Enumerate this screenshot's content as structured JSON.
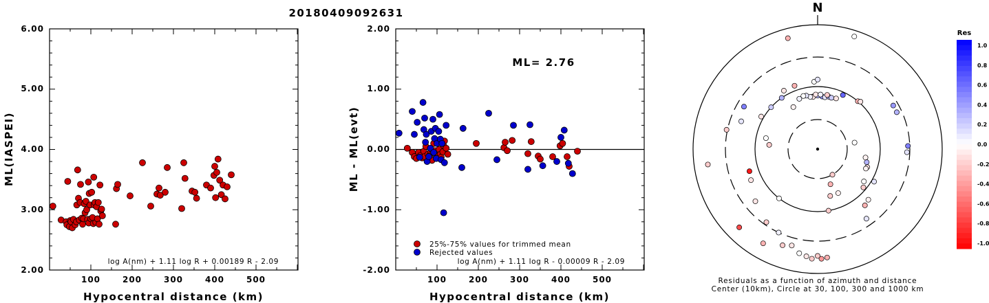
{
  "event_id": "20180409092631",
  "chart_data": [
    {
      "type": "scatter",
      "ylabel": "ML(IASPEI)",
      "xlabel": "Hypocentral distance (km)",
      "xlim": [
        0,
        600
      ],
      "ylim": [
        2.0,
        6.0
      ],
      "x_ticks": [
        "100",
        "200",
        "300",
        "400",
        "500"
      ],
      "y_ticks": [
        "2.00",
        "3.00",
        "4.00",
        "5.00",
        "6.00"
      ],
      "formula": "log A(nm) + 1.11 log R + 0.00189 R - 2.09",
      "marker_color": "#cc0000",
      "points": [
        [
          8,
          3.06
        ],
        [
          28,
          2.83
        ],
        [
          40,
          2.8
        ],
        [
          42,
          2.75
        ],
        [
          44,
          3.47
        ],
        [
          48,
          2.72
        ],
        [
          50,
          2.82
        ],
        [
          52,
          2.8
        ],
        [
          55,
          2.7
        ],
        [
          58,
          2.84
        ],
        [
          62,
          2.75
        ],
        [
          65,
          2.8
        ],
        [
          66,
          3.08
        ],
        [
          68,
          3.66
        ],
        [
          70,
          3.19
        ],
        [
          72,
          2.83
        ],
        [
          74,
          3.12
        ],
        [
          75,
          3.42
        ],
        [
          78,
          2.86
        ],
        [
          80,
          2.76
        ],
        [
          82,
          2.85
        ],
        [
          84,
          3.1
        ],
        [
          86,
          2.95
        ],
        [
          88,
          3.14
        ],
        [
          90,
          3.0
        ],
        [
          92,
          2.84
        ],
        [
          94,
          3.46
        ],
        [
          95,
          2.78
        ],
        [
          96,
          3.27
        ],
        [
          98,
          3.08
        ],
        [
          100,
          2.85
        ],
        [
          102,
          3.29
        ],
        [
          104,
          2.87
        ],
        [
          106,
          2.77
        ],
        [
          107,
          3.54
        ],
        [
          108,
          3.08
        ],
        [
          110,
          3.12
        ],
        [
          112,
          2.79
        ],
        [
          114,
          3.05
        ],
        [
          116,
          2.85
        ],
        [
          118,
          3.12
        ],
        [
          120,
          2.76
        ],
        [
          122,
          3.41
        ],
        [
          124,
          2.98
        ],
        [
          126,
          3.01
        ],
        [
          128,
          2.9
        ],
        [
          160,
          2.76
        ],
        [
          162,
          3.35
        ],
        [
          165,
          3.42
        ],
        [
          195,
          3.23
        ],
        [
          225,
          3.78
        ],
        [
          245,
          3.06
        ],
        [
          260,
          3.26
        ],
        [
          265,
          3.36
        ],
        [
          268,
          3.24
        ],
        [
          280,
          3.29
        ],
        [
          285,
          3.7
        ],
        [
          320,
          3.02
        ],
        [
          325,
          3.78
        ],
        [
          328,
          3.52
        ],
        [
          345,
          3.31
        ],
        [
          352,
          3.29
        ],
        [
          356,
          3.19
        ],
        [
          380,
          3.41
        ],
        [
          390,
          3.36
        ],
        [
          398,
          3.57
        ],
        [
          400,
          3.72
        ],
        [
          402,
          3.2
        ],
        [
          405,
          3.62
        ],
        [
          408,
          3.84
        ],
        [
          412,
          3.49
        ],
        [
          416,
          3.25
        ],
        [
          420,
          3.41
        ],
        [
          425,
          3.18
        ],
        [
          430,
          3.38
        ],
        [
          440,
          3.58
        ]
      ]
    },
    {
      "type": "scatter",
      "ylabel": "ML - ML(evt)",
      "xlabel": "Hypocentral distance (km)",
      "xlim": [
        0,
        600
      ],
      "ylim": [
        -2.0,
        2.0
      ],
      "x_ticks": [
        "100",
        "200",
        "300",
        "400",
        "500"
      ],
      "y_ticks": [
        "-2.00",
        "-1.00",
        "0.00",
        "1.00",
        "2.00"
      ],
      "annotation": "ML= 2.76",
      "formula": "log A(nm) + 1.11 log R - 0.00009 R - 2.09",
      "series": [
        {
          "name": "25%-75% values for trimmed mean",
          "color": "#cc0000",
          "points": [
            [
              28,
              0.02
            ],
            [
              40,
              -0.05
            ],
            [
              45,
              -0.12
            ],
            [
              50,
              -0.15
            ],
            [
              55,
              -0.05
            ],
            [
              60,
              -0.1
            ],
            [
              64,
              -0.14
            ],
            [
              68,
              -0.03
            ],
            [
              70,
              -0.12
            ],
            [
              73,
              0.05
            ],
            [
              78,
              -0.08
            ],
            [
              82,
              -0.1
            ],
            [
              85,
              -0.03
            ],
            [
              88,
              -0.18
            ],
            [
              90,
              -0.05
            ],
            [
              92,
              0.1
            ],
            [
              95,
              -0.02
            ],
            [
              98,
              -0.13
            ],
            [
              102,
              -0.07
            ],
            [
              105,
              0.0
            ],
            [
              108,
              -0.08
            ],
            [
              110,
              -0.13
            ],
            [
              112,
              0.12
            ],
            [
              114,
              -0.04
            ],
            [
              116,
              0.06
            ],
            [
              118,
              0.14
            ],
            [
              122,
              0.02
            ],
            [
              126,
              -0.08
            ],
            [
              195,
              0.1
            ],
            [
              262,
              0.03
            ],
            [
              265,
              0.12
            ],
            [
              270,
              -0.02
            ],
            [
              282,
              0.15
            ],
            [
              320,
              -0.07
            ],
            [
              328,
              0.13
            ],
            [
              345,
              -0.11
            ],
            [
              350,
              -0.16
            ],
            [
              380,
              -0.12
            ],
            [
              398,
              0.06
            ],
            [
              404,
              0.1
            ],
            [
              415,
              -0.12
            ],
            [
              420,
              -0.28
            ],
            [
              440,
              -0.03
            ]
          ]
        },
        {
          "name": "Rejected values",
          "color": "#0000cc",
          "points": [
            [
              8,
              0.27
            ],
            [
              40,
              0.63
            ],
            [
              45,
              0.25
            ],
            [
              52,
              0.45
            ],
            [
              58,
              -0.13
            ],
            [
              66,
              0.78
            ],
            [
              68,
              0.33
            ],
            [
              70,
              0.52
            ],
            [
              72,
              0.12
            ],
            [
              74,
              0.25
            ],
            [
              76,
              -0.2
            ],
            [
              80,
              -0.12
            ],
            [
              84,
              0.02
            ],
            [
              86,
              0.3
            ],
            [
              90,
              0.5
            ],
            [
              92,
              -0.05
            ],
            [
              94,
              0.18
            ],
            [
              96,
              0.35
            ],
            [
              98,
              -0.15
            ],
            [
              100,
              0.1
            ],
            [
              104,
              0.3
            ],
            [
              106,
              0.58
            ],
            [
              108,
              0.17
            ],
            [
              110,
              -0.17
            ],
            [
              112,
              0.1
            ],
            [
              116,
              -1.05
            ],
            [
              118,
              -0.22
            ],
            [
              122,
              0.4
            ],
            [
              160,
              -0.3
            ],
            [
              163,
              0.35
            ],
            [
              225,
              0.6
            ],
            [
              245,
              -0.17
            ],
            [
              285,
              0.4
            ],
            [
              320,
              -0.33
            ],
            [
              325,
              0.41
            ],
            [
              356,
              -0.27
            ],
            [
              390,
              -0.2
            ],
            [
              400,
              0.2
            ],
            [
              408,
              0.32
            ],
            [
              418,
              -0.23
            ],
            [
              428,
              -0.4
            ]
          ]
        }
      ]
    },
    {
      "type": "scatter",
      "subtype": "polar",
      "north_label": "N",
      "caption_line1": "Residuals as a function of azimuth and distance",
      "caption_line2": "Center (10km), Circle at 30, 100, 300 and 1000 km",
      "colorbar": {
        "title": "Res",
        "ticks": [
          "1.0",
          "0.8",
          "0.6",
          "0.4",
          "0.2",
          "0.0",
          "-0.2",
          "-0.4",
          "-0.6",
          "-0.8",
          "-1.0"
        ],
        "max_color": "#0000ff",
        "zero_color": "#ffffff",
        "min_color": "#ff0000"
      },
      "points_azimuth_deg_distance_km_residual": [
        [
          355,
          70,
          0.2
        ],
        [
          0,
          72,
          0.3
        ],
        [
          5,
          70,
          0.4
        ],
        [
          8,
          69,
          0.1
        ],
        [
          -5,
          69,
          -0.1
        ],
        [
          -8,
          70,
          0.05
        ],
        [
          12,
          72,
          0.3
        ],
        [
          15,
          71,
          0.2
        ],
        [
          -2,
          75,
          -0.1
        ],
        [
          3,
          75,
          0.05
        ],
        [
          10,
          76,
          -0.2
        ],
        [
          -12,
          75,
          0.1
        ],
        [
          -15,
          76,
          0.0
        ],
        [
          20,
          73,
          -0.1
        ],
        [
          -20,
          72,
          0.05
        ],
        [
          25,
          90,
          0.6
        ],
        [
          40,
          100,
          -0.3
        ],
        [
          42,
          105,
          -0.1
        ],
        [
          -35,
          100,
          0.3
        ],
        [
          -30,
          120,
          -0.1
        ],
        [
          60,
          250,
          0.4
        ],
        [
          65,
          250,
          0.3
        ],
        [
          -70,
          200,
          0.1
        ],
        [
          -60,
          230,
          0.5
        ],
        [
          -78,
          310,
          -0.2
        ],
        [
          80,
          40,
          0.0
        ],
        [
          88,
          280,
          0.5
        ],
        [
          92,
          270,
          0.1
        ],
        [
          100,
          60,
          -0.05
        ],
        [
          105,
          65,
          0.3
        ],
        [
          110,
          70,
          -0.1
        ],
        [
          112,
          68,
          -0.05
        ],
        [
          120,
          110,
          0.1
        ],
        [
          125,
          80,
          0.0
        ],
        [
          130,
          90,
          -0.2
        ],
        [
          135,
          140,
          -0.05
        ],
        [
          140,
          150,
          -0.3
        ],
        [
          145,
          230,
          0.1
        ],
        [
          150,
          30,
          -0.2
        ],
        [
          155,
          60,
          -0.05
        ],
        [
          160,
          40,
          -0.3
        ],
        [
          165,
          60,
          -0.2
        ],
        [
          170,
          100,
          -0.2
        ],
        [
          175,
          560,
          -0.3
        ],
        [
          178,
          580,
          -0.4
        ],
        [
          180,
          520,
          -0.2
        ],
        [
          183,
          580,
          -0.2
        ],
        [
          186,
          540,
          -0.1
        ],
        [
          190,
          500,
          0.0
        ],
        [
          195,
          400,
          -0.1
        ],
        [
          200,
          440,
          -0.2
        ],
        [
          205,
          300,
          0.05
        ],
        [
          210,
          560,
          -0.3
        ],
        [
          215,
          270,
          -0.2
        ],
        [
          218,
          100,
          0.0
        ],
        [
          225,
          600,
          -0.7
        ],
        [
          230,
          200,
          -0.1
        ],
        [
          245,
          150,
          -0.1
        ],
        [
          252,
          140,
          -0.9
        ],
        [
          262,
          600,
          -0.2
        ],
        [
          275,
          60,
          -0.2
        ],
        [
          282,
          70,
          0.0
        ],
        [
          300,
          110,
          -0.1
        ],
        [
          312,
          100,
          0.2
        ],
        [
          330,
          60,
          -0.05
        ],
        [
          340,
          120,
          -0.3
        ],
        [
          345,
          700,
          -0.3
        ],
        [
          18,
          800,
          0.0
        ],
        [
          -3,
          120,
          0.0
        ],
        [
          0,
          130,
          0.1
        ]
      ]
    }
  ]
}
